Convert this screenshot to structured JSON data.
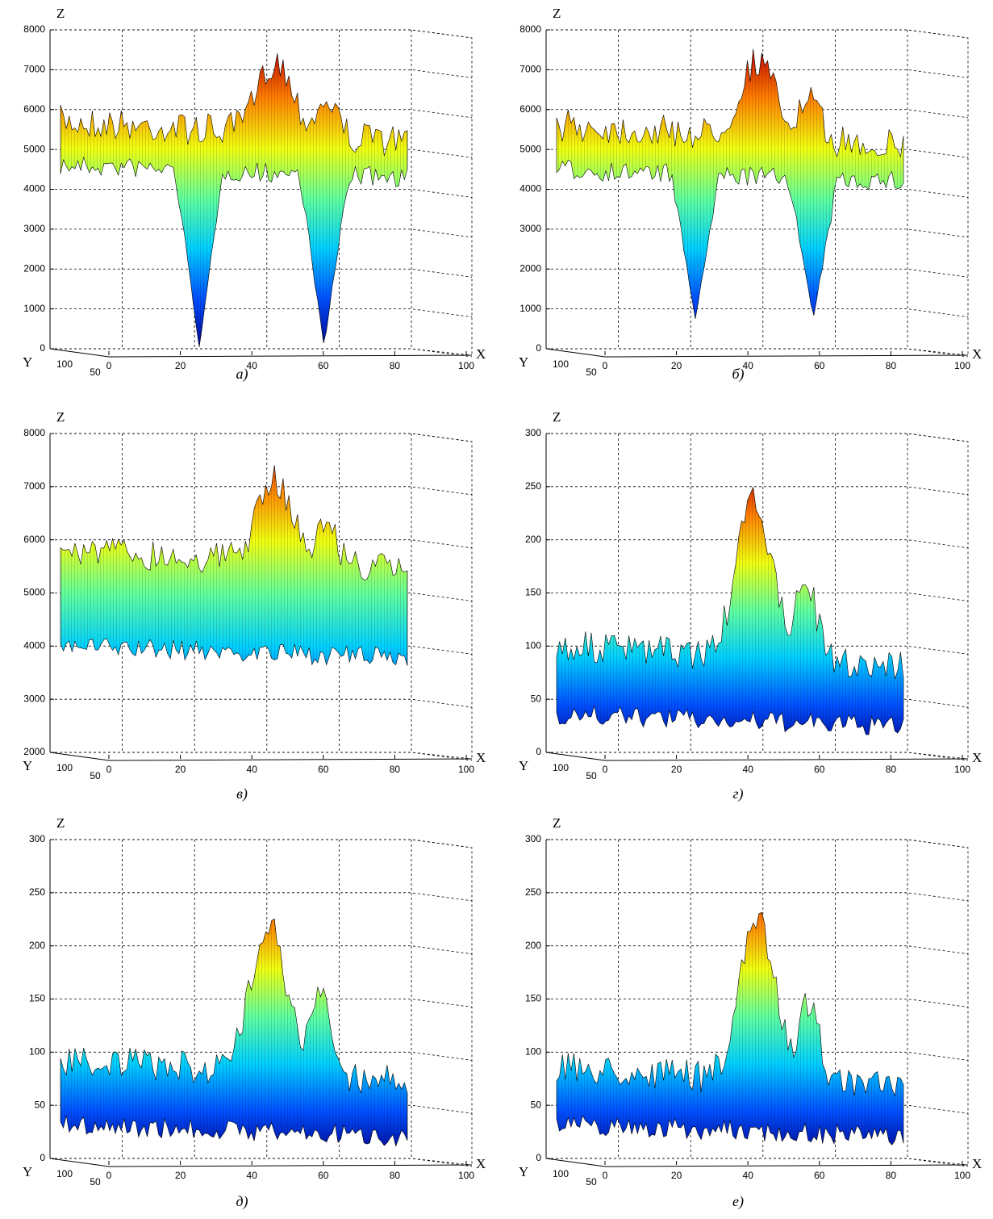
{
  "chart_data": [
    {
      "type": "surface",
      "caption": "а)",
      "zlabel": "Z",
      "xlabel": "X",
      "ylabel": "Y",
      "zlim": [
        0,
        8000
      ],
      "zticks": [
        0,
        1000,
        2000,
        3000,
        4000,
        5000,
        6000,
        7000,
        8000
      ],
      "xlim": [
        0,
        100
      ],
      "xticks": [
        0,
        20,
        40,
        60,
        80,
        100
      ],
      "yticks": [
        100,
        50
      ]
    },
    {
      "type": "surface",
      "caption": "б)",
      "zlabel": "Z",
      "xlabel": "X",
      "ylabel": "Y",
      "zlim": [
        0,
        8000
      ],
      "zticks": [
        0,
        1000,
        2000,
        3000,
        4000,
        5000,
        6000,
        7000,
        8000
      ],
      "xlim": [
        0,
        100
      ],
      "xticks": [
        0,
        20,
        40,
        60,
        80,
        100
      ],
      "yticks": [
        100,
        50
      ]
    },
    {
      "type": "surface",
      "caption": "в)",
      "zlabel": "Z",
      "xlabel": "X",
      "ylabel": "Y",
      "zlim": [
        2000,
        8000
      ],
      "zticks": [
        2000,
        3000,
        4000,
        5000,
        6000,
        7000,
        8000
      ],
      "xlim": [
        0,
        100
      ],
      "xticks": [
        0,
        20,
        40,
        60,
        80,
        100
      ],
      "yticks": [
        100,
        50
      ]
    },
    {
      "type": "surface",
      "caption": "г)",
      "zlabel": "Z",
      "xlabel": "X",
      "ylabel": "Y",
      "zlim": [
        0,
        300
      ],
      "zticks": [
        0,
        50,
        100,
        150,
        200,
        250,
        300
      ],
      "xlim": [
        0,
        100
      ],
      "xticks": [
        0,
        20,
        40,
        60,
        80,
        100
      ],
      "yticks": [
        100,
        50
      ]
    },
    {
      "type": "surface",
      "caption": "д)",
      "zlabel": "Z",
      "xlabel": "X",
      "ylabel": "Y",
      "zlim": [
        0,
        300
      ],
      "zticks": [
        0,
        50,
        100,
        150,
        200,
        250,
        300
      ],
      "xlim": [
        0,
        100
      ],
      "xticks": [
        0,
        20,
        40,
        60,
        80,
        100
      ],
      "yticks": [
        100,
        50
      ]
    },
    {
      "type": "surface",
      "caption": "е)",
      "zlabel": "Z",
      "xlabel": "X",
      "ylabel": "Y",
      "zlim": [
        0,
        300
      ],
      "zticks": [
        0,
        50,
        100,
        150,
        200,
        250,
        300
      ],
      "xlim": [
        0,
        100
      ],
      "xticks": [
        0,
        20,
        40,
        60,
        80,
        100
      ],
      "yticks": [
        100,
        50
      ]
    }
  ]
}
